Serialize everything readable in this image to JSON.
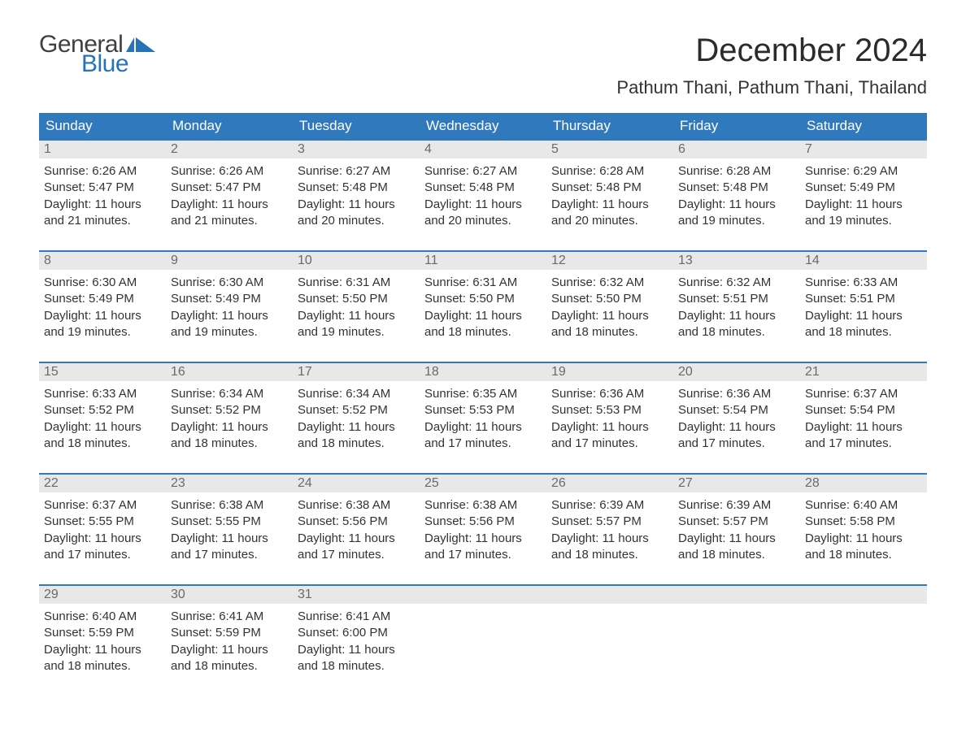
{
  "brand": {
    "word1": "General",
    "word2": "Blue",
    "word1_color": "#404040",
    "word2_color": "#2673b8",
    "flag_color": "#2673b8"
  },
  "title": "December 2024",
  "location": "Pathum Thani, Pathum Thani, Thailand",
  "colors": {
    "header_bg": "#3179bd",
    "header_text": "#ffffff",
    "daynum_bg": "#e8e8e8",
    "daynum_text": "#6a6a6a",
    "body_text": "#333333",
    "week_border": "#3179bd",
    "page_bg": "#ffffff"
  },
  "typography": {
    "title_fontsize": 40,
    "location_fontsize": 22,
    "weekday_fontsize": 17,
    "daynum_fontsize": 16,
    "body_fontsize": 15
  },
  "weekdays": [
    "Sunday",
    "Monday",
    "Tuesday",
    "Wednesday",
    "Thursday",
    "Friday",
    "Saturday"
  ],
  "weeks": [
    [
      {
        "num": "1",
        "sunrise": "Sunrise: 6:26 AM",
        "sunset": "Sunset: 5:47 PM",
        "daylight": "Daylight: 11 hours and 21 minutes."
      },
      {
        "num": "2",
        "sunrise": "Sunrise: 6:26 AM",
        "sunset": "Sunset: 5:47 PM",
        "daylight": "Daylight: 11 hours and 21 minutes."
      },
      {
        "num": "3",
        "sunrise": "Sunrise: 6:27 AM",
        "sunset": "Sunset: 5:48 PM",
        "daylight": "Daylight: 11 hours and 20 minutes."
      },
      {
        "num": "4",
        "sunrise": "Sunrise: 6:27 AM",
        "sunset": "Sunset: 5:48 PM",
        "daylight": "Daylight: 11 hours and 20 minutes."
      },
      {
        "num": "5",
        "sunrise": "Sunrise: 6:28 AM",
        "sunset": "Sunset: 5:48 PM",
        "daylight": "Daylight: 11 hours and 20 minutes."
      },
      {
        "num": "6",
        "sunrise": "Sunrise: 6:28 AM",
        "sunset": "Sunset: 5:48 PM",
        "daylight": "Daylight: 11 hours and 19 minutes."
      },
      {
        "num": "7",
        "sunrise": "Sunrise: 6:29 AM",
        "sunset": "Sunset: 5:49 PM",
        "daylight": "Daylight: 11 hours and 19 minutes."
      }
    ],
    [
      {
        "num": "8",
        "sunrise": "Sunrise: 6:30 AM",
        "sunset": "Sunset: 5:49 PM",
        "daylight": "Daylight: 11 hours and 19 minutes."
      },
      {
        "num": "9",
        "sunrise": "Sunrise: 6:30 AM",
        "sunset": "Sunset: 5:49 PM",
        "daylight": "Daylight: 11 hours and 19 minutes."
      },
      {
        "num": "10",
        "sunrise": "Sunrise: 6:31 AM",
        "sunset": "Sunset: 5:50 PM",
        "daylight": "Daylight: 11 hours and 19 minutes."
      },
      {
        "num": "11",
        "sunrise": "Sunrise: 6:31 AM",
        "sunset": "Sunset: 5:50 PM",
        "daylight": "Daylight: 11 hours and 18 minutes."
      },
      {
        "num": "12",
        "sunrise": "Sunrise: 6:32 AM",
        "sunset": "Sunset: 5:50 PM",
        "daylight": "Daylight: 11 hours and 18 minutes."
      },
      {
        "num": "13",
        "sunrise": "Sunrise: 6:32 AM",
        "sunset": "Sunset: 5:51 PM",
        "daylight": "Daylight: 11 hours and 18 minutes."
      },
      {
        "num": "14",
        "sunrise": "Sunrise: 6:33 AM",
        "sunset": "Sunset: 5:51 PM",
        "daylight": "Daylight: 11 hours and 18 minutes."
      }
    ],
    [
      {
        "num": "15",
        "sunrise": "Sunrise: 6:33 AM",
        "sunset": "Sunset: 5:52 PM",
        "daylight": "Daylight: 11 hours and 18 minutes."
      },
      {
        "num": "16",
        "sunrise": "Sunrise: 6:34 AM",
        "sunset": "Sunset: 5:52 PM",
        "daylight": "Daylight: 11 hours and 18 minutes."
      },
      {
        "num": "17",
        "sunrise": "Sunrise: 6:34 AM",
        "sunset": "Sunset: 5:52 PM",
        "daylight": "Daylight: 11 hours and 18 minutes."
      },
      {
        "num": "18",
        "sunrise": "Sunrise: 6:35 AM",
        "sunset": "Sunset: 5:53 PM",
        "daylight": "Daylight: 11 hours and 17 minutes."
      },
      {
        "num": "19",
        "sunrise": "Sunrise: 6:36 AM",
        "sunset": "Sunset: 5:53 PM",
        "daylight": "Daylight: 11 hours and 17 minutes."
      },
      {
        "num": "20",
        "sunrise": "Sunrise: 6:36 AM",
        "sunset": "Sunset: 5:54 PM",
        "daylight": "Daylight: 11 hours and 17 minutes."
      },
      {
        "num": "21",
        "sunrise": "Sunrise: 6:37 AM",
        "sunset": "Sunset: 5:54 PM",
        "daylight": "Daylight: 11 hours and 17 minutes."
      }
    ],
    [
      {
        "num": "22",
        "sunrise": "Sunrise: 6:37 AM",
        "sunset": "Sunset: 5:55 PM",
        "daylight": "Daylight: 11 hours and 17 minutes."
      },
      {
        "num": "23",
        "sunrise": "Sunrise: 6:38 AM",
        "sunset": "Sunset: 5:55 PM",
        "daylight": "Daylight: 11 hours and 17 minutes."
      },
      {
        "num": "24",
        "sunrise": "Sunrise: 6:38 AM",
        "sunset": "Sunset: 5:56 PM",
        "daylight": "Daylight: 11 hours and 17 minutes."
      },
      {
        "num": "25",
        "sunrise": "Sunrise: 6:38 AM",
        "sunset": "Sunset: 5:56 PM",
        "daylight": "Daylight: 11 hours and 17 minutes."
      },
      {
        "num": "26",
        "sunrise": "Sunrise: 6:39 AM",
        "sunset": "Sunset: 5:57 PM",
        "daylight": "Daylight: 11 hours and 18 minutes."
      },
      {
        "num": "27",
        "sunrise": "Sunrise: 6:39 AM",
        "sunset": "Sunset: 5:57 PM",
        "daylight": "Daylight: 11 hours and 18 minutes."
      },
      {
        "num": "28",
        "sunrise": "Sunrise: 6:40 AM",
        "sunset": "Sunset: 5:58 PM",
        "daylight": "Daylight: 11 hours and 18 minutes."
      }
    ],
    [
      {
        "num": "29",
        "sunrise": "Sunrise: 6:40 AM",
        "sunset": "Sunset: 5:59 PM",
        "daylight": "Daylight: 11 hours and 18 minutes."
      },
      {
        "num": "30",
        "sunrise": "Sunrise: 6:41 AM",
        "sunset": "Sunset: 5:59 PM",
        "daylight": "Daylight: 11 hours and 18 minutes."
      },
      {
        "num": "31",
        "sunrise": "Sunrise: 6:41 AM",
        "sunset": "Sunset: 6:00 PM",
        "daylight": "Daylight: 11 hours and 18 minutes."
      },
      {
        "empty": true
      },
      {
        "empty": true
      },
      {
        "empty": true
      },
      {
        "empty": true
      }
    ]
  ]
}
